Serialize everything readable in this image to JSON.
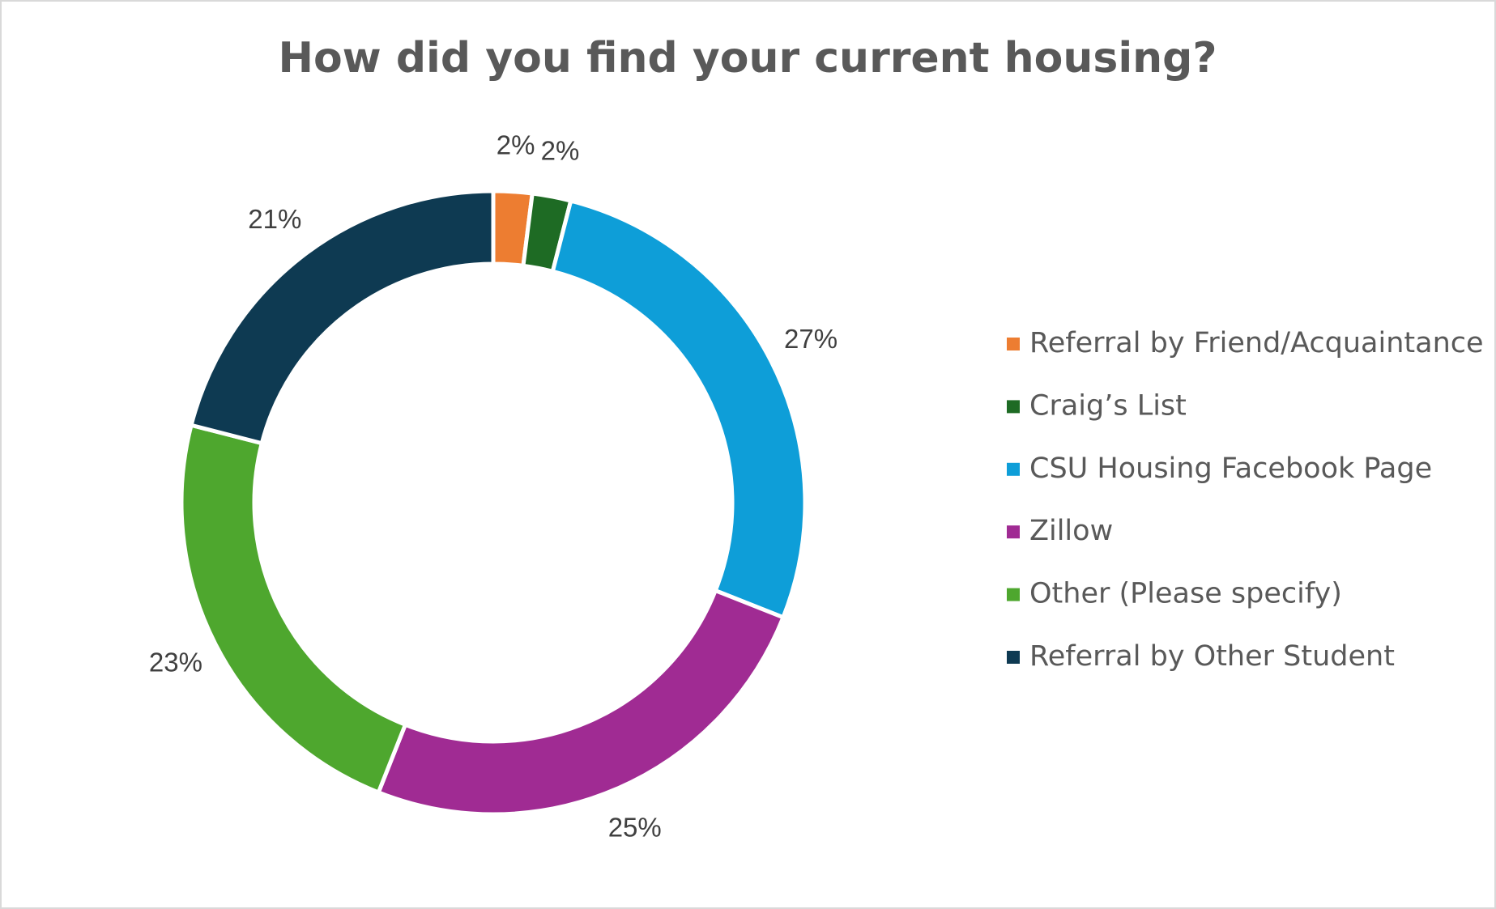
{
  "chart_data": {
    "type": "donut",
    "title": "How did you find your current housing?",
    "categories": [
      "Referral by Friend/Acquaintance",
      "Craig’s List",
      "CSU Housing Facebook Page",
      "Zillow",
      "Other (Please specify)",
      "Referral by Other Student"
    ],
    "values": [
      2,
      2,
      27,
      25,
      23,
      21
    ],
    "value_labels": [
      "2%",
      "2%",
      "27%",
      "25%",
      "23%",
      "21%"
    ],
    "colors": [
      "#ED7D31",
      "#1E6B24",
      "#0E9ED8",
      "#A02B93",
      "#4EA72E",
      "#0E3A52"
    ],
    "legend": "right"
  }
}
